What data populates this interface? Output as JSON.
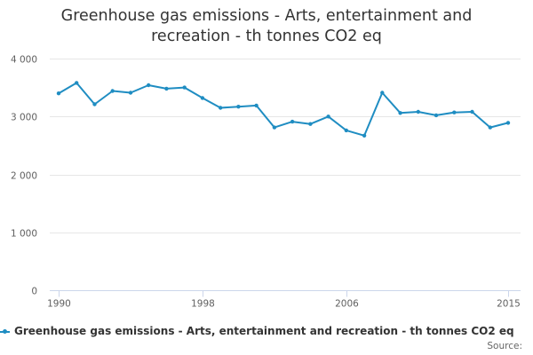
{
  "chart_data": {
    "type": "line",
    "title_lines": [
      "Greenhouse gas emissions - Arts, entertainment and",
      "recreation - th tonnes CO2 eq"
    ],
    "xlabel": "",
    "ylabel": "",
    "x": [
      1990,
      1991,
      1992,
      1993,
      1994,
      1995,
      1996,
      1997,
      1998,
      1999,
      2000,
      2001,
      2002,
      2003,
      2004,
      2005,
      2006,
      2007,
      2008,
      2009,
      2010,
      2011,
      2012,
      2013,
      2014,
      2015
    ],
    "x_ticks": [
      1990,
      1998,
      2006,
      2015
    ],
    "x_tick_labels": [
      "1990",
      "1998",
      "2006",
      "2015"
    ],
    "xlim": [
      1990,
      2015
    ],
    "ylim": [
      0,
      4000
    ],
    "y_ticks": [
      0,
      1000,
      2000,
      3000,
      4000
    ],
    "y_tick_labels": [
      "0",
      "1 000",
      "2 000",
      "3 000",
      "4 000"
    ],
    "grid": "horizontal",
    "legend_position": "bottom",
    "series": [
      {
        "name": "Greenhouse gas emissions - Arts, entertainment and recreation - th tonnes CO2 eq",
        "color": "#1f8dc2",
        "values": [
          3400,
          3580,
          3210,
          3440,
          3410,
          3540,
          3480,
          3500,
          3320,
          3150,
          3170,
          3190,
          2810,
          2910,
          2870,
          3000,
          2760,
          2670,
          3410,
          3060,
          3080,
          3020,
          3070,
          3080,
          2810,
          2890
        ]
      }
    ]
  },
  "credits": "Source:"
}
